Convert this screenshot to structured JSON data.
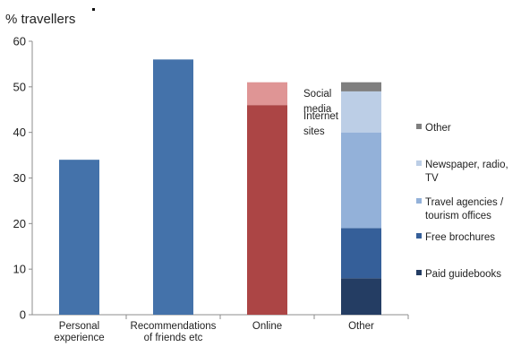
{
  "chart_data": {
    "type": "bar",
    "stacked": true,
    "ylabel": "% travellers",
    "ylim": [
      0,
      60
    ],
    "yticks": [
      0,
      10,
      20,
      30,
      40,
      50,
      60
    ],
    "grid": false,
    "bars": [
      {
        "category": [
          "Personal",
          "experience"
        ],
        "segments": [
          {
            "name": "Personal experience",
            "value": 34,
            "color": "#4472aa"
          }
        ]
      },
      {
        "category": [
          "Recommendations",
          "of friends etc"
        ],
        "segments": [
          {
            "name": "Recommendations of friends etc",
            "value": 56,
            "color": "#4472aa"
          }
        ]
      },
      {
        "category": [
          "Online"
        ],
        "segments": [
          {
            "name": "Internet sites",
            "value": 46,
            "color": "#ac4545",
            "label": [
              "Internet",
              "sites"
            ]
          },
          {
            "name": "Social media",
            "value": 5,
            "color": "#df9595",
            "label": [
              "Social",
              "media"
            ]
          }
        ]
      },
      {
        "category": [
          "Other"
        ],
        "segments": [
          {
            "name": "Paid guidebooks",
            "value": 8,
            "color": "#243d63"
          },
          {
            "name": "Free brochures",
            "value": 11,
            "color": "#355f99"
          },
          {
            "name": "Travel agencies / tourism offices",
            "value": 21,
            "color": "#93b1d9"
          },
          {
            "name": "Newspaper, radio, TV",
            "value": 9,
            "color": "#bccee6"
          },
          {
            "name": "Other",
            "value": 2,
            "color": "#7f7f7f"
          }
        ]
      }
    ],
    "legend": {
      "position": "right",
      "items": [
        {
          "label": [
            "Other"
          ],
          "color": "#7f7f7f"
        },
        {
          "label": [
            "Newspaper, radio,",
            "TV"
          ],
          "color": "#bccee6"
        },
        {
          "label": [
            "Travel agencies /",
            "tourism offices"
          ],
          "color": "#93b1d9"
        },
        {
          "label": [
            "Free brochures"
          ],
          "color": "#355f99"
        },
        {
          "label": [
            "Paid guidebooks"
          ],
          "color": "#243d63"
        }
      ]
    }
  }
}
